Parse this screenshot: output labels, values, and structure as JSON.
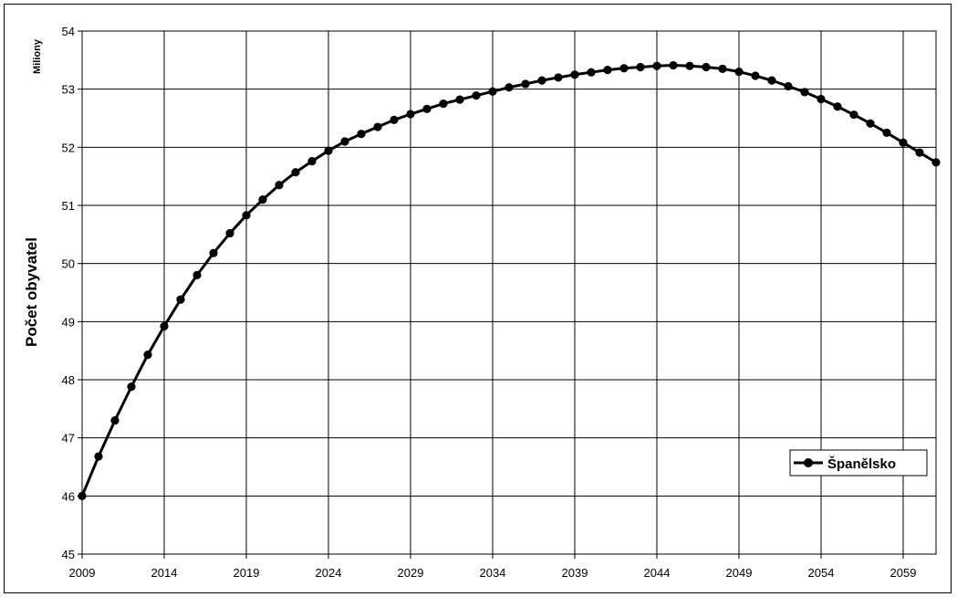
{
  "chart_data": {
    "type": "line",
    "ylabel": "Počet obyvatel",
    "y_unit": "Miliony",
    "xlabel": "",
    "title": "",
    "xlim": [
      2009,
      2061
    ],
    "ylim": [
      45,
      54
    ],
    "x_ticks": [
      2009,
      2014,
      2019,
      2024,
      2029,
      2034,
      2039,
      2044,
      2049,
      2054,
      2059
    ],
    "y_ticks": [
      45,
      46,
      47,
      48,
      49,
      50,
      51,
      52,
      53,
      54
    ],
    "grid": true,
    "legend_position": "lower-right",
    "series": [
      {
        "name": "Španělsko",
        "color": "#000000",
        "x": [
          2009,
          2010,
          2011,
          2012,
          2013,
          2014,
          2015,
          2016,
          2017,
          2018,
          2019,
          2020,
          2021,
          2022,
          2023,
          2024,
          2025,
          2026,
          2027,
          2028,
          2029,
          2030,
          2031,
          2032,
          2033,
          2034,
          2035,
          2036,
          2037,
          2038,
          2039,
          2040,
          2041,
          2042,
          2043,
          2044,
          2045,
          2046,
          2047,
          2048,
          2049,
          2050,
          2051,
          2052,
          2053,
          2054,
          2055,
          2056,
          2057,
          2058,
          2059,
          2060,
          2061
        ],
        "y": [
          46.0,
          46.68,
          47.3,
          47.88,
          48.43,
          48.92,
          49.38,
          49.8,
          50.18,
          50.52,
          50.83,
          51.1,
          51.35,
          51.57,
          51.76,
          51.94,
          52.1,
          52.23,
          52.35,
          52.47,
          52.57,
          52.66,
          52.75,
          52.82,
          52.89,
          52.96,
          53.03,
          53.09,
          53.15,
          53.2,
          53.25,
          53.29,
          53.33,
          53.36,
          53.38,
          53.4,
          53.41,
          53.4,
          53.38,
          53.35,
          53.3,
          53.23,
          53.15,
          53.05,
          52.95,
          52.83,
          52.7,
          52.56,
          52.41,
          52.25,
          52.08,
          51.91,
          51.74
        ]
      }
    ]
  }
}
